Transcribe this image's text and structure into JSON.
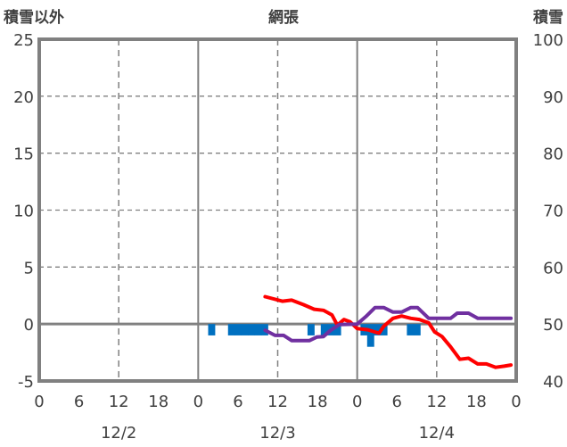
{
  "chart_data": {
    "type": "line",
    "title": "網張",
    "ylabel_left": "積雪以外",
    "ylabel_right": "積雪",
    "ylim_left": [
      -5,
      25
    ],
    "ylim_right": [
      40,
      100
    ],
    "yticks_left": [
      "-5",
      "0",
      "5",
      "10",
      "15",
      "20",
      "25"
    ],
    "yticks_right": [
      "40",
      "50",
      "60",
      "70",
      "80",
      "90",
      "100"
    ],
    "xlim_hours": [
      0,
      72
    ],
    "xticks": [
      "0",
      "6",
      "12",
      "18",
      "0",
      "6",
      "12",
      "18",
      "0",
      "6",
      "12",
      "18",
      "0"
    ],
    "date_labels": [
      "12/2",
      "12/3",
      "12/4"
    ],
    "grid": true,
    "colors": {
      "bars": "#0070C0",
      "red": "#FF0000",
      "purple": "#7030A0",
      "frame": "#808080",
      "grid": "#808080"
    },
    "bars": {
      "axis": "left",
      "hours": [
        26,
        29,
        30,
        31,
        32,
        33,
        34,
        41,
        43,
        44,
        45,
        49,
        50,
        51,
        52,
        56,
        57
      ],
      "values": [
        -1,
        -1,
        -1,
        -1,
        -1,
        -1,
        -1,
        -1,
        -1,
        -1,
        -1,
        -1,
        -2,
        -1,
        -1,
        -1,
        -1
      ]
    },
    "series": [
      {
        "name": "red",
        "axis": "left",
        "x": [
          34.1,
          36.7,
          38.1,
          39.9,
          41.5,
          42.9,
          44.2,
          45.0,
          46.0,
          46.9,
          48.0,
          49.6,
          50.7,
          51.3,
          52.0,
          53.4,
          54.7,
          56.1,
          57.4,
          58.8,
          59.7,
          60.8,
          62.1,
          63.5,
          64.8,
          66.2,
          67.5,
          68.9,
          70.2,
          71.2
        ],
        "y": [
          2.4,
          2.0,
          2.1,
          1.7,
          1.3,
          1.2,
          0.8,
          -0.1,
          0.4,
          0.2,
          -0.4,
          -0.5,
          -0.7,
          -0.8,
          -0.2,
          0.5,
          0.7,
          0.5,
          0.4,
          0.1,
          -0.7,
          -1.1,
          -2.0,
          -3.1,
          -3.0,
          -3.5,
          -3.5,
          -3.8,
          -3.7,
          -3.6
        ]
      },
      {
        "name": "purple",
        "axis": "right",
        "x": [
          34.1,
          35.6,
          36.9,
          38.1,
          40.8,
          41.9,
          42.9,
          44.0,
          45.3,
          48.0,
          49.3,
          50.7,
          52.0,
          53.4,
          54.7,
          56.1,
          57.1,
          58.8,
          62.1,
          63.1,
          64.8,
          66.2,
          71.2
        ],
        "y": [
          48.9,
          48.0,
          48.0,
          47.1,
          47.1,
          47.7,
          47.8,
          48.9,
          49.9,
          50.0,
          51.3,
          52.9,
          52.9,
          52.1,
          52.1,
          52.9,
          52.9,
          51.0,
          51.0,
          51.9,
          51.9,
          51.0,
          51.0
        ]
      }
    ]
  }
}
